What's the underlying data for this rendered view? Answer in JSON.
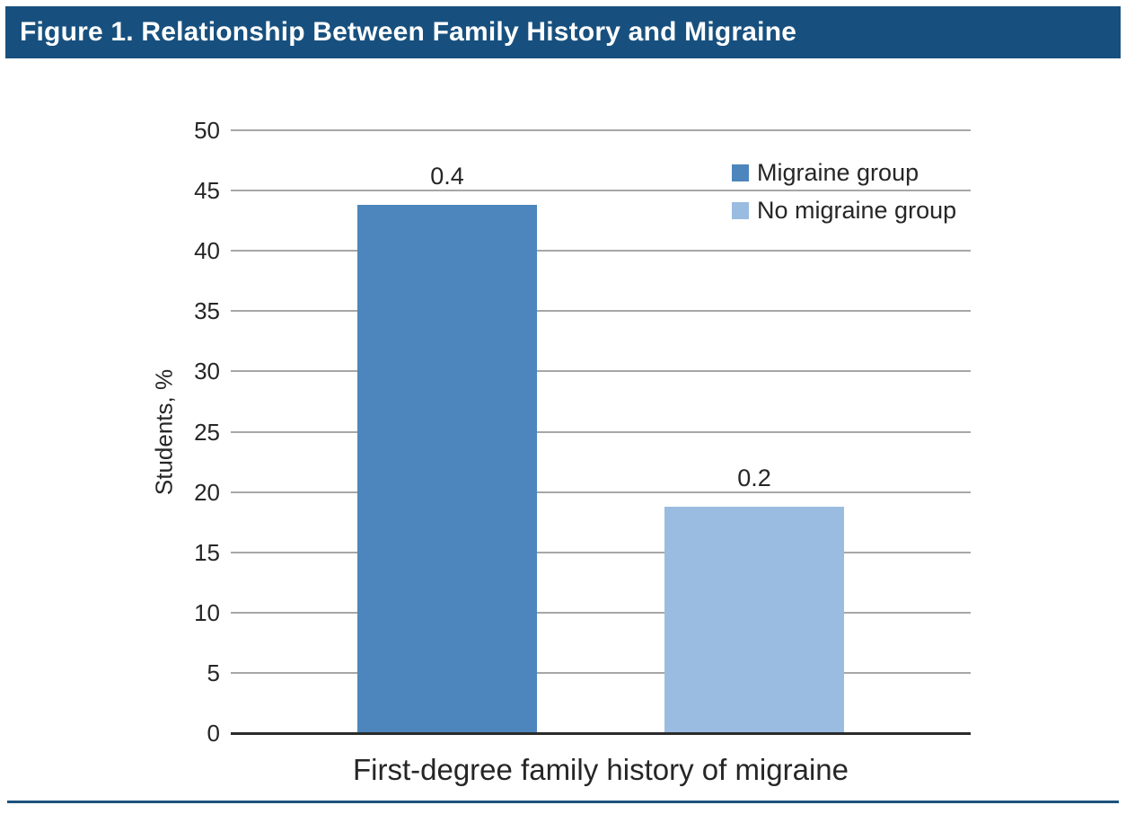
{
  "header": {
    "title": "Figure 1. Relationship Between Family History and Migraine"
  },
  "colors": {
    "header_bg": "#17507E",
    "migraine_bar": "#4D86BC",
    "no_migraine_bar": "#9ABCE1",
    "gridline": "#A7A7A7",
    "axis_line": "#2B2B2B",
    "bottom_rule": "#1D527E",
    "text": "#262626"
  },
  "chart_data": {
    "type": "bar",
    "title": "Figure 1. Relationship Between Family History and Migraine",
    "ylabel": "Students, %",
    "xlabel": "First-degree family history of migraine",
    "ylim": [
      0,
      50
    ],
    "ytick_step": 5,
    "yticks": [
      0,
      5,
      10,
      15,
      20,
      25,
      30,
      35,
      40,
      45,
      50
    ],
    "grid": "horizontal",
    "legend_position": "top-right",
    "categories": [
      "First-degree family history of migraine"
    ],
    "series": [
      {
        "name": "Migraine group",
        "value": 43.8,
        "bar_label": "0.4",
        "color": "#4D86BC"
      },
      {
        "name": "No migraine group",
        "value": 18.8,
        "bar_label": "0.2",
        "color": "#9ABCE1"
      }
    ]
  }
}
